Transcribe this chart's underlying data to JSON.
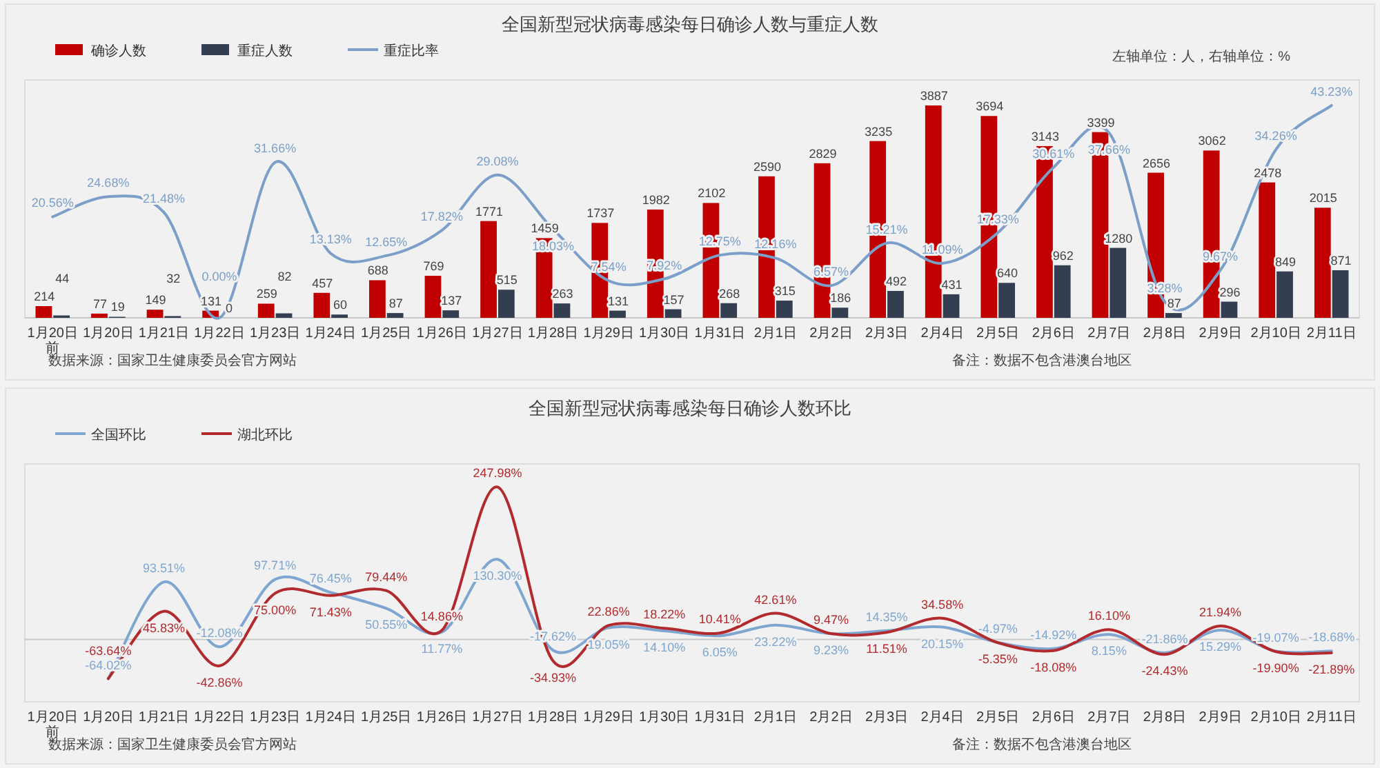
{
  "chart_data": [
    {
      "type": "bar",
      "title": "全国新型冠状病毒感染每日确诊人数与重症人数",
      "annotations": [
        "数据来源：国家卫生健康委员会官方网站",
        "备注：数据不包含港澳台地区",
        "左轴单位：人，右轴单位：%"
      ],
      "categories": [
        "1月20日前",
        "1月20日",
        "1月21日",
        "1月22日",
        "1月23日",
        "1月24日",
        "1月25日",
        "1月26日",
        "1月27日",
        "1月28日",
        "1月29日",
        "1月30日",
        "1月31日",
        "2月1日",
        "2月2日",
        "2月3日",
        "2月4日",
        "2月5日",
        "2月6日",
        "2月7日",
        "2月8日",
        "2月9日",
        "2月10日",
        "2月11日"
      ],
      "series": [
        {
          "name": "确诊人数",
          "color": "#c00000",
          "values": [
            214,
            77,
            149,
            131,
            259,
            457,
            688,
            769,
            1771,
            1459,
            1737,
            1982,
            2102,
            2590,
            2829,
            3235,
            3887,
            3694,
            3143,
            3399,
            2656,
            3062,
            2478,
            2015
          ]
        },
        {
          "name": "重症人数",
          "color": "#333f50",
          "values": [
            44,
            19,
            32,
            0,
            82,
            60,
            87,
            137,
            515,
            263,
            131,
            157,
            268,
            315,
            186,
            492,
            431,
            640,
            962,
            1280,
            87,
            296,
            849,
            871
          ]
        },
        {
          "name": "重症比率",
          "type": "line",
          "axis": "y2",
          "color": "#7b9fc9",
          "values": [
            20.56,
            24.68,
            21.48,
            0,
            31.66,
            13.13,
            12.65,
            17.82,
            29.08,
            18.03,
            7.54,
            7.92,
            12.75,
            12.16,
            6.57,
            15.21,
            11.09,
            17.33,
            30.61,
            37.66,
            3.28,
            9.67,
            34.26,
            43.23
          ],
          "value_labels": [
            "20.56%",
            "24.68%",
            "21.48%",
            "0.00%",
            "31.66%",
            "13.13%",
            "12.65%",
            "17.82%",
            "29.08%",
            "18.03%",
            "7.54%",
            "7.92%",
            "12.75%",
            "12.16%",
            "6.57%",
            "15.21%",
            "11.09%",
            "17.33%",
            "30.61%",
            "37.66%",
            "3.28%",
            "9.67%",
            "34.26%",
            "43.23%"
          ]
        }
      ],
      "data_labels": true,
      "legend": "top left",
      "tick_labels": "x"
    },
    {
      "type": "line",
      "title": "全国新型冠状病毒感染每日确诊人数环比",
      "annotations": [
        "数据来源：国家卫生健康委员会官方网站",
        "备注：数据不包含港澳台地区"
      ],
      "categories": [
        "1月20日前",
        "1月20日",
        "1月21日",
        "1月22日",
        "1月23日",
        "1月24日",
        "1月25日",
        "1月26日",
        "1月27日",
        "1月28日",
        "1月29日",
        "1月30日",
        "1月31日",
        "2月1日",
        "2月2日",
        "2月3日",
        "2月4日",
        "2月5日",
        "2月6日",
        "2月7日",
        "2月8日",
        "2月9日",
        "2月10日",
        "2月11日"
      ],
      "series": [
        {
          "name": "全国环比",
          "color": "#7ea6d0",
          "values": [
            null,
            -64.02,
            93.51,
            -12.08,
            97.71,
            76.45,
            50.55,
            11.77,
            130.3,
            -17.62,
            19.05,
            14.1,
            6.05,
            23.22,
            9.23,
            14.35,
            20.15,
            -4.97,
            -14.92,
            8.15,
            -21.86,
            15.29,
            -19.07,
            -18.68
          ],
          "value_labels": [
            null,
            "-64.02%",
            "93.51%",
            "-12.08%",
            "97.71%",
            "76.45%",
            "50.55%",
            "11.77%",
            "130.30%",
            "-17.62%",
            "19.05%",
            "14.10%",
            "6.05%",
            "23.22%",
            "9.23%",
            "14.35%",
            "20.15%",
            "-4.97%",
            "-14.92%",
            "8.15%",
            "-21.86%",
            "15.29%",
            "-19.07%",
            "-18.68%"
          ]
        },
        {
          "name": "湖北环比",
          "color": "#b22a2e",
          "values": [
            null,
            -63.64,
            45.83,
            -42.86,
            75.0,
            71.43,
            79.44,
            14.86,
            247.98,
            -34.93,
            22.86,
            18.22,
            10.41,
            42.61,
            9.47,
            11.51,
            34.58,
            -5.35,
            -18.08,
            16.1,
            -24.43,
            21.94,
            -19.9,
            -21.89
          ],
          "value_labels": [
            null,
            "-63.64%",
            "45.83%",
            "-42.86%",
            "75.00%",
            "71.43%",
            "79.44%",
            "14.86%",
            "247.98%",
            "-34.93%",
            "22.86%",
            "18.22%",
            "10.41%",
            "42.61%",
            "9.47%",
            "11.51%",
            "34.58%",
            "-5.35%",
            "-18.08%",
            "16.10%",
            "-24.43%",
            "21.94%",
            "-19.90%",
            "-21.89%"
          ]
        }
      ],
      "legend": "top left",
      "tick_labels": "x"
    }
  ]
}
